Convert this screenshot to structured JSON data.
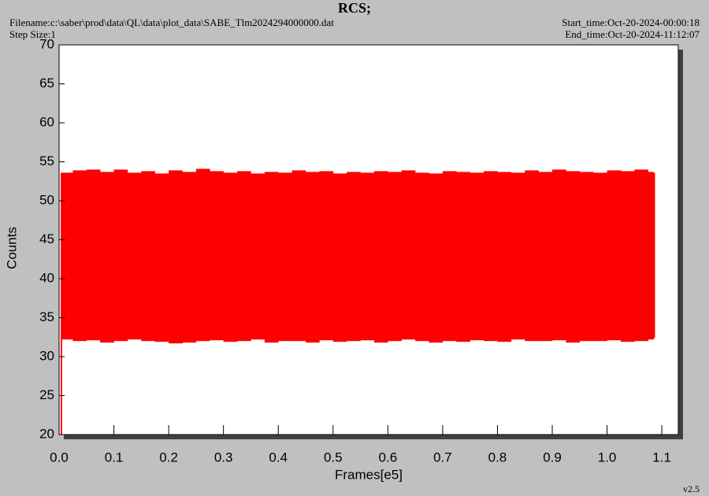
{
  "chart_data": {
    "type": "range",
    "title": "RCS;",
    "filename": "Filename:c:\\saber\\prod\\data\\QL\\data\\plot_data\\SABE_Tlm2024294000000.dat",
    "step_size": "Step Size:1",
    "start_time": "Start_time:Oct-20-2024-00:00:18",
    "end_time": "End_time:Oct-20-2024-11:12:07",
    "version": "v2.5",
    "x_label": "Frames[e5]",
    "y_label": "Counts",
    "color": "#ff0000",
    "xlim": [
      0,
      1.13
    ],
    "ylim": [
      20,
      70
    ],
    "xticks": [
      {
        "value": 0,
        "label": "0.0"
      },
      0.1,
      0.2,
      0.3,
      0.4,
      0.5,
      0.6,
      0.7,
      0.8,
      0.9,
      {
        "value": 1,
        "label": "1.0"
      },
      1.1
    ],
    "yticks": [
      20,
      25,
      30,
      35,
      40,
      45,
      50,
      55,
      60,
      65,
      70
    ],
    "x": [
      0.003,
      0.004,
      0.025,
      0.05,
      0.075,
      0.1,
      0.125,
      0.15,
      0.175,
      0.2,
      0.225,
      0.25,
      0.275,
      0.3,
      0.325,
      0.35,
      0.375,
      0.4,
      0.425,
      0.45,
      0.475,
      0.5,
      0.525,
      0.55,
      0.575,
      0.6,
      0.625,
      0.65,
      0.675,
      0.7,
      0.725,
      0.75,
      0.775,
      0.8,
      0.825,
      0.85,
      0.875,
      0.9,
      0.925,
      0.95,
      0.975,
      1.0,
      1.025,
      1.05,
      1.075,
      1.085
    ],
    "high": [
      53.6,
      53.6,
      53.9,
      54.0,
      53.7,
      54.0,
      53.6,
      53.8,
      53.5,
      53.9,
      53.7,
      54.1,
      53.8,
      53.6,
      53.8,
      53.5,
      53.7,
      53.6,
      53.9,
      53.7,
      53.8,
      53.5,
      53.7,
      53.6,
      53.8,
      53.7,
      53.9,
      53.6,
      53.5,
      53.8,
      53.7,
      53.6,
      53.8,
      53.7,
      53.6,
      53.9,
      53.7,
      54.0,
      53.8,
      53.7,
      53.6,
      53.9,
      53.8,
      54.0,
      53.7,
      53.6
    ],
    "low": [
      20,
      32.2,
      32.0,
      32.1,
      31.8,
      32.0,
      32.2,
      32.0,
      31.9,
      31.7,
      31.8,
      32.0,
      32.1,
      31.9,
      32.0,
      32.2,
      31.8,
      32.0,
      32.0,
      31.8,
      32.1,
      31.9,
      32.0,
      32.1,
      31.8,
      32.0,
      32.2,
      32.0,
      31.8,
      32.0,
      31.9,
      32.1,
      32.0,
      31.9,
      32.2,
      32.0,
      32.0,
      32.1,
      31.8,
      32.0,
      32.0,
      32.1,
      31.9,
      32.0,
      32.2,
      32.4
    ]
  }
}
